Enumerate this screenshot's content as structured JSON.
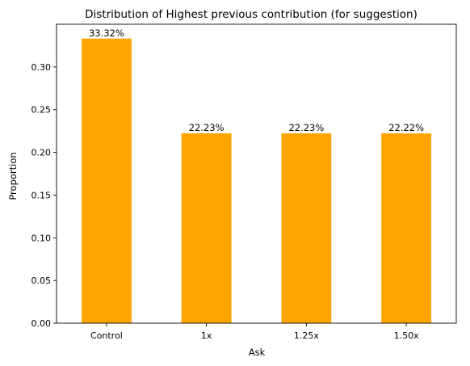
{
  "chart_data": {
    "type": "bar",
    "title": "Distribution of Highest previous contribution (for suggestion)",
    "xlabel": "Ask",
    "ylabel": "Proportion",
    "categories": [
      "Control",
      "1x",
      "1.25x",
      "1.50x"
    ],
    "values": [
      0.3332,
      0.2223,
      0.2223,
      0.2222
    ],
    "data_labels": [
      "33.32%",
      "22.23%",
      "22.23%",
      "22.22%"
    ],
    "yticks": [
      0.0,
      0.05,
      0.1,
      0.15,
      0.2,
      0.25,
      0.3
    ],
    "ytick_labels": [
      "0.00",
      "0.05",
      "0.10",
      "0.15",
      "0.20",
      "0.25",
      "0.30"
    ],
    "ylim": [
      0,
      0.35
    ],
    "grid": false,
    "legend": "none",
    "bar_color": "#FFA500"
  }
}
